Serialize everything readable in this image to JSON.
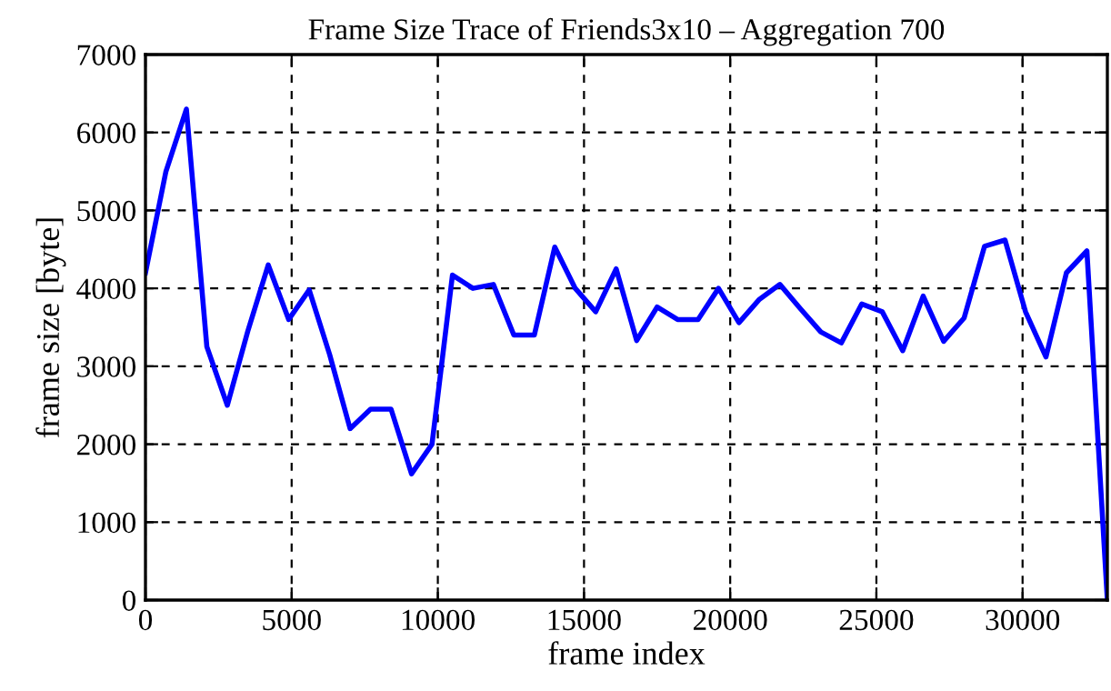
{
  "chart_data": {
    "type": "line",
    "title": "Frame Size Trace of Friends3x10 – Aggregation 700",
    "xlabel": "frame index",
    "ylabel": "frame size [byte]",
    "x": [
      0,
      700,
      1400,
      2100,
      2800,
      3500,
      4200,
      4900,
      5600,
      6300,
      7000,
      7700,
      8400,
      9100,
      9800,
      10500,
      11200,
      11900,
      12600,
      13300,
      14000,
      14700,
      15400,
      16100,
      16800,
      17500,
      18200,
      18900,
      19600,
      20300,
      21000,
      21700,
      22400,
      23100,
      23800,
      24500,
      25200,
      25900,
      26600,
      27300,
      28000,
      28700,
      29400,
      30100,
      30800,
      31500,
      32200,
      32900
    ],
    "series": [
      {
        "color": "#0000ff",
        "values": [
          4200,
          5500,
          6300,
          3250,
          2500,
          3450,
          4300,
          3600,
          3980,
          3150,
          2200,
          2450,
          2450,
          1620,
          2000,
          4170,
          4000,
          4050,
          3400,
          3400,
          4530,
          4000,
          3700,
          4250,
          3330,
          3760,
          3600,
          3600,
          4000,
          3560,
          3860,
          4050,
          3740,
          3440,
          3300,
          3800,
          3700,
          3200,
          3900,
          3320,
          3620,
          4540,
          4620,
          3700,
          3120,
          4200,
          4480,
          0
        ]
      }
    ],
    "xlim": [
      0,
      32900
    ],
    "ylim": [
      0,
      7000
    ],
    "xticks": [
      0,
      5000,
      10000,
      15000,
      20000,
      25000,
      30000
    ],
    "yticks": [
      0,
      1000,
      2000,
      3000,
      4000,
      5000,
      6000,
      7000
    ],
    "grid": true,
    "legend": false,
    "marker": "none",
    "line_style": "solid"
  }
}
